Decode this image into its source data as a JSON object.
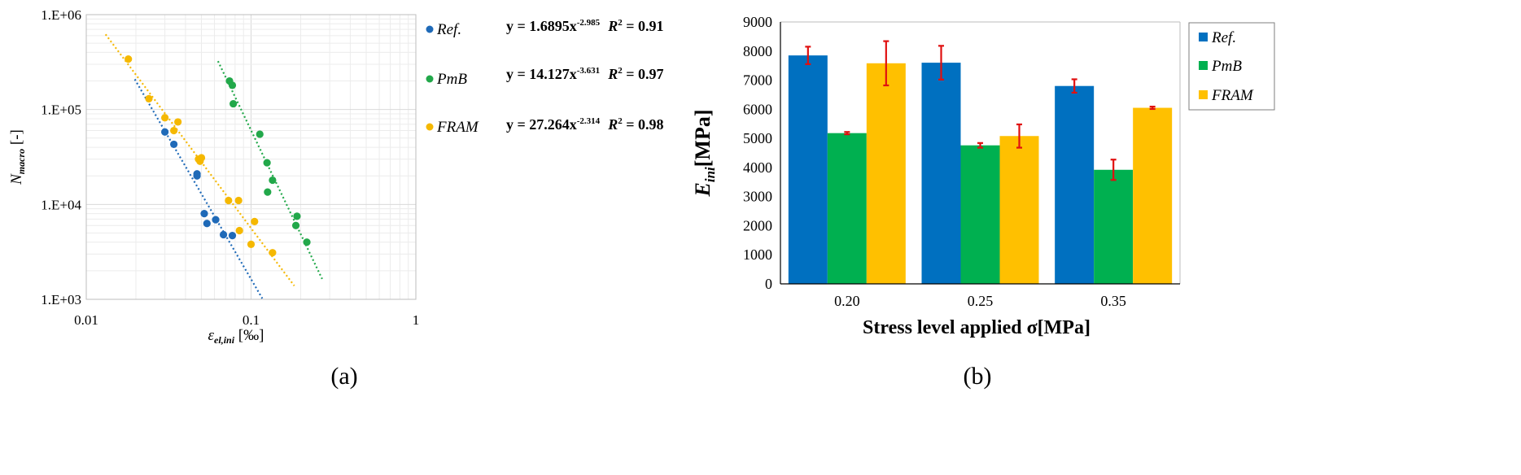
{
  "chart_data": [
    {
      "type": "scatter",
      "panel_label": "(a)",
      "x_scale": "log",
      "y_scale": "log",
      "xlim": [
        0.01,
        1
      ],
      "ylim": [
        1000,
        1000000
      ],
      "x_ticks": [
        "0.01",
        "0.1",
        "1"
      ],
      "y_ticks": [
        "1.E+03",
        "1.E+04",
        "1.E+05",
        "1.E+06"
      ],
      "ylabel": {
        "main": "N",
        "sub": "macro",
        "suffix": " [-]"
      },
      "xlabel": {
        "main": "ε",
        "sub": "el,ini",
        "suffix": " [‰]"
      },
      "grid": true,
      "legend_position": "right",
      "series": [
        {
          "name": "Ref.",
          "color": "#1f6ab8",
          "equation": "y = 1.6895x",
          "exponent": "-2.985",
          "r2_label": "R",
          "r2_value": " = 0.91",
          "fit": {
            "a": 1.6895,
            "b": -2.985,
            "x_from": 0.0197,
            "x_to": 0.117
          },
          "points": [
            [
              0.03,
              58000
            ],
            [
              0.034,
              43000
            ],
            [
              0.047,
              21000
            ],
            [
              0.047,
              20000
            ],
            [
              0.052,
              8000
            ],
            [
              0.054,
              6300
            ],
            [
              0.061,
              6900
            ],
            [
              0.068,
              4800
            ],
            [
              0.077,
              4700
            ]
          ]
        },
        {
          "name": "PmB",
          "color": "#22a84a",
          "equation": "y = 14.127x",
          "exponent": "-3.631",
          "r2_label": "R",
          "r2_value": " = 0.97",
          "fit": {
            "a": 14.127,
            "b": -3.631,
            "x_from": 0.063,
            "x_to": 0.27
          },
          "points": [
            [
              0.074,
              200000
            ],
            [
              0.077,
              180000
            ],
            [
              0.078,
              115000
            ],
            [
              0.113,
              55000
            ],
            [
              0.125,
              27500
            ],
            [
              0.126,
              13500
            ],
            [
              0.135,
              18000
            ],
            [
              0.187,
              6000
            ],
            [
              0.19,
              7500
            ],
            [
              0.218,
              4000
            ]
          ]
        },
        {
          "name": "FRAM",
          "color": "#f5b800",
          "equation": "y = 27.264x",
          "exponent": "-2.314",
          "r2_label": "R",
          "r2_value": " = 0.98",
          "fit": {
            "a": 27.264,
            "b": -2.314,
            "x_from": 0.0131,
            "x_to": 0.183
          },
          "points": [
            [
              0.018,
              340000
            ],
            [
              0.024,
              130000
            ],
            [
              0.03,
              82000
            ],
            [
              0.034,
              60000
            ],
            [
              0.036,
              74000
            ],
            [
              0.048,
              30000
            ],
            [
              0.049,
              28500
            ],
            [
              0.05,
              31000
            ],
            [
              0.073,
              11000
            ],
            [
              0.084,
              11000
            ],
            [
              0.085,
              5300
            ],
            [
              0.1,
              3800
            ],
            [
              0.105,
              6600
            ],
            [
              0.135,
              3100
            ]
          ]
        }
      ]
    },
    {
      "type": "bar",
      "panel_label": "(b)",
      "categories": [
        "0.20",
        "0.25",
        "0.35"
      ],
      "ylim": [
        0,
        9000
      ],
      "y_ticks": [
        "0",
        "1000",
        "2000",
        "3000",
        "4000",
        "5000",
        "6000",
        "7000",
        "8000",
        "9000"
      ],
      "ylabel": {
        "main": "E",
        "sub": "ini",
        "suffix": "[MPa]"
      },
      "xlabel": "Stress level applied σ[MPa]",
      "legend_position": "right",
      "error_color": "#e01010",
      "series": [
        {
          "name": "Ref.",
          "color": "#0070c0",
          "values": [
            7850,
            7600,
            6800
          ],
          "errors": [
            300,
            580,
            230
          ]
        },
        {
          "name": "PmB",
          "color": "#00b050",
          "values": [
            5180,
            4760,
            3920
          ],
          "errors": [
            40,
            80,
            350
          ]
        },
        {
          "name": "FRAM",
          "color": "#ffc000",
          "values": [
            7580,
            5080,
            6050
          ],
          "errors": [
            760,
            400,
            40
          ]
        }
      ]
    }
  ]
}
